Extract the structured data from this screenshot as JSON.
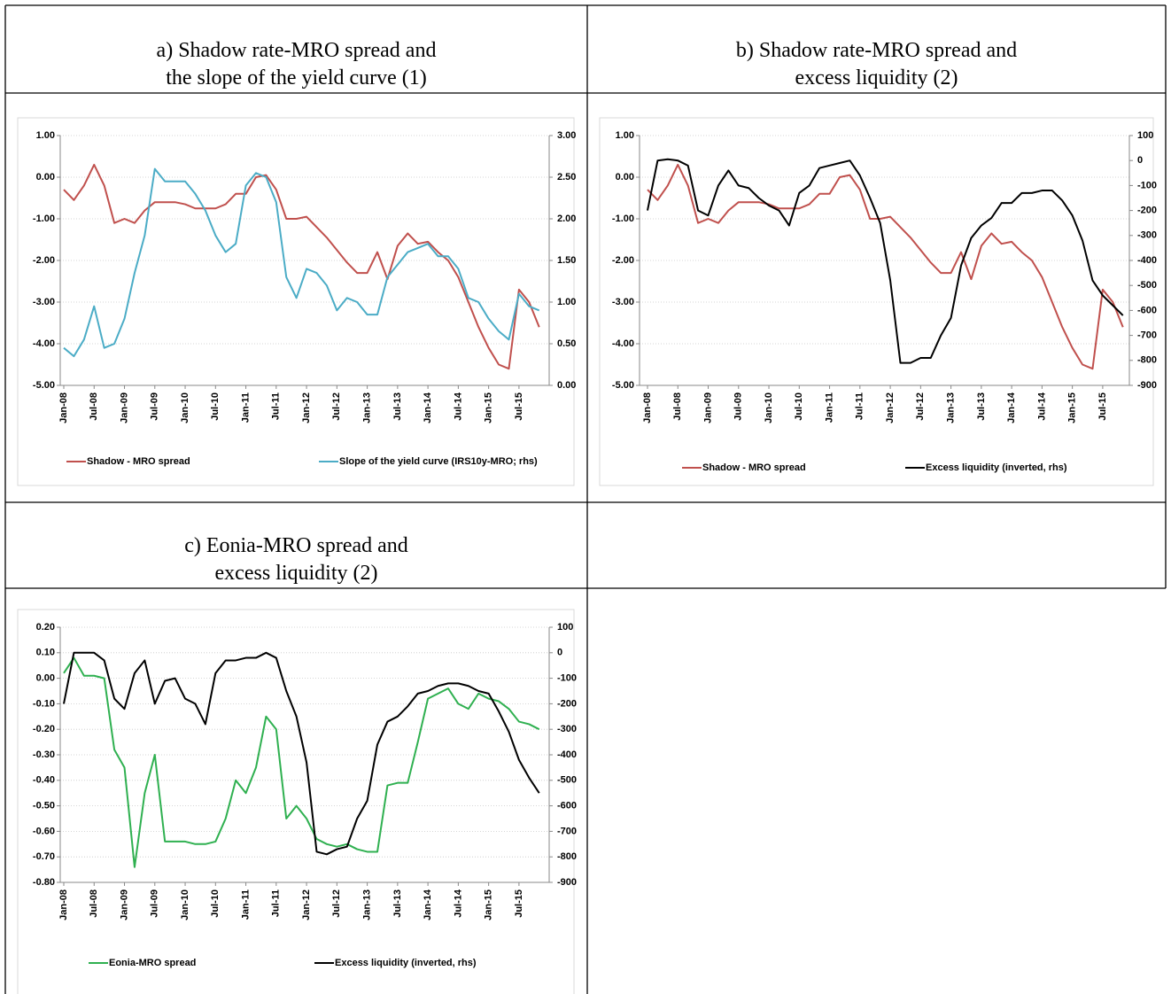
{
  "chart_data": [
    {
      "type": "line",
      "title": "a) Shadow rate-MRO spread and\nthe slope of the yield curve (1)",
      "categories": [
        "Jan-08",
        null,
        null,
        "Jul-08",
        null,
        null,
        "Jan-09",
        null,
        null,
        "Jul-09",
        null,
        null,
        "Jan-10",
        null,
        null,
        "Jul-10",
        null,
        null,
        "Jan-11",
        null,
        null,
        "Jul-11",
        null,
        null,
        "Jan-12",
        null,
        null,
        "Jul-12",
        null,
        null,
        "Jan-13",
        null,
        null,
        "Jul-13",
        null,
        null,
        "Jan-14",
        null,
        null,
        "Jul-14",
        null,
        null,
        "Jan-15",
        null,
        null,
        "Jul-15",
        null,
        null
      ],
      "series": [
        {
          "name": "Shadow - MRO spread",
          "color": "#c0504d",
          "values": [
            -0.3,
            -0.55,
            -0.2,
            0.3,
            -0.2,
            -1.1,
            -1.0,
            -1.1,
            -0.8,
            -0.6,
            -0.6,
            -0.6,
            -0.65,
            -0.75,
            -0.75,
            -0.75,
            -0.65,
            -0.4,
            -0.4,
            0.0,
            0.05,
            -0.3,
            -1.0,
            -1.0,
            -0.95,
            -1.2,
            -1.45,
            -1.75,
            -2.05,
            -2.3,
            -2.3,
            -1.8,
            -2.45,
            -1.65,
            -1.35,
            -1.6,
            -1.55,
            -1.8,
            -2.0,
            -2.4,
            -3.0,
            -3.6,
            -4.1,
            -4.5,
            -4.6,
            -2.7,
            -3.0,
            -3.6
          ]
        },
        {
          "name": "Slope of the yield curve (IRS10y-MRO; rhs)",
          "color": "#4bacc6",
          "axis": "y2",
          "values": [
            0.45,
            0.35,
            0.55,
            0.95,
            0.45,
            0.5,
            0.8,
            1.35,
            1.8,
            2.6,
            2.45,
            2.45,
            2.45,
            2.3,
            2.1,
            1.8,
            1.6,
            1.7,
            2.4,
            2.55,
            2.5,
            2.2,
            1.3,
            1.05,
            1.4,
            1.35,
            1.2,
            0.9,
            1.05,
            1.0,
            0.85,
            0.85,
            1.3,
            1.45,
            1.6,
            1.65,
            1.7,
            1.55,
            1.55,
            1.4,
            1.05,
            1.0,
            0.8,
            0.65,
            0.55,
            1.1,
            0.95,
            0.9
          ]
        }
      ],
      "ylim": [
        -5,
        1
      ],
      "yticks": [
        {
          "value": -5,
          "label": "-5.00"
        },
        {
          "value": -4,
          "label": "-4.00"
        },
        {
          "value": -3,
          "label": "-3.00"
        },
        {
          "value": -2,
          "label": "-2.00"
        },
        {
          "value": -1,
          "label": "-1.00"
        },
        {
          "value": 0,
          "label": "0.00"
        },
        {
          "value": 1,
          "label": "1.00"
        }
      ],
      "y2lim": [
        0,
        3
      ],
      "y2ticks": [
        {
          "value": 0,
          "label": "0.00"
        },
        {
          "value": 0.5,
          "label": "0.50"
        },
        {
          "value": 1,
          "label": "1.00"
        },
        {
          "value": 1.5,
          "label": "1.50"
        },
        {
          "value": 2,
          "label": "2.00"
        },
        {
          "value": 2.5,
          "label": "2.50"
        },
        {
          "value": 3,
          "label": "3.00"
        }
      ],
      "grid": true,
      "legend": "bottom"
    },
    {
      "type": "line",
      "title": "b) Shadow rate-MRO spread and\nexcess liquidity (2)",
      "categories": [
        "Jan-08",
        null,
        null,
        "Jul-08",
        null,
        null,
        "Jan-09",
        null,
        null,
        "Jul-09",
        null,
        null,
        "Jan-10",
        null,
        null,
        "Jul-10",
        null,
        null,
        "Jan-11",
        null,
        null,
        "Jul-11",
        null,
        null,
        "Jan-12",
        null,
        null,
        "Jul-12",
        null,
        null,
        "Jan-13",
        null,
        null,
        "Jul-13",
        null,
        null,
        "Jan-14",
        null,
        null,
        "Jul-14",
        null,
        null,
        "Jan-15",
        null,
        null,
        "Jul-15",
        null,
        null
      ],
      "series": [
        {
          "name": "Shadow - MRO spread",
          "color": "#c0504d",
          "values": [
            -0.3,
            -0.55,
            -0.2,
            0.3,
            -0.2,
            -1.1,
            -1.0,
            -1.1,
            -0.8,
            -0.6,
            -0.6,
            -0.6,
            -0.65,
            -0.75,
            -0.75,
            -0.75,
            -0.65,
            -0.4,
            -0.4,
            0.0,
            0.05,
            -0.3,
            -1.0,
            -1.0,
            -0.95,
            -1.2,
            -1.45,
            -1.75,
            -2.05,
            -2.3,
            -2.3,
            -1.8,
            -2.45,
            -1.65,
            -1.35,
            -1.6,
            -1.55,
            -1.8,
            -2.0,
            -2.4,
            -3.0,
            -3.6,
            -4.1,
            -4.5,
            -4.6,
            -2.7,
            -3.0,
            -3.6
          ]
        },
        {
          "name": "Excess liquidity (inverted, rhs)",
          "color": "#000000",
          "axis": "y2",
          "values": [
            -200,
            0,
            5,
            0,
            -20,
            -200,
            -220,
            -100,
            -40,
            -100,
            -110,
            -150,
            -180,
            -200,
            -260,
            -130,
            -100,
            -30,
            -20,
            -10,
            0,
            -60,
            -150,
            -250,
            -480,
            -810,
            -810,
            -790,
            -790,
            -700,
            -630,
            -420,
            -310,
            -260,
            -230,
            -170,
            -170,
            -130,
            -130,
            -120,
            -120,
            -160,
            -220,
            -320,
            -480,
            -540,
            -580,
            -620
          ]
        }
      ],
      "ylim": [
        -5,
        1
      ],
      "yticks": [
        {
          "value": -5,
          "label": "-5.00"
        },
        {
          "value": -4,
          "label": "-4.00"
        },
        {
          "value": -3,
          "label": "-3.00"
        },
        {
          "value": -2,
          "label": "-2.00"
        },
        {
          "value": -1,
          "label": "-1.00"
        },
        {
          "value": 0,
          "label": "0.00"
        },
        {
          "value": 1,
          "label": "1.00"
        }
      ],
      "y2lim": [
        -900,
        100
      ],
      "y2ticks": [
        -900,
        -800,
        -700,
        -600,
        -500,
        -400,
        -300,
        -200,
        -100,
        0,
        100
      ],
      "grid": true,
      "legend": "bottom"
    },
    {
      "type": "line",
      "title": "c) Eonia-MRO spread and\nexcess liquidity (2)",
      "categories": [
        "Jan-08",
        null,
        null,
        "Jul-08",
        null,
        null,
        "Jan-09",
        null,
        null,
        "Jul-09",
        null,
        null,
        "Jan-10",
        null,
        null,
        "Jul-10",
        null,
        null,
        "Jan-11",
        null,
        null,
        "Jul-11",
        null,
        null,
        "Jan-12",
        null,
        null,
        "Jul-12",
        null,
        null,
        "Jan-13",
        null,
        null,
        "Jul-13",
        null,
        null,
        "Jan-14",
        null,
        null,
        "Jul-14",
        null,
        null,
        "Jan-15",
        null,
        null,
        "Jul-15",
        null,
        null
      ],
      "series": [
        {
          "name": "Eonia-MRO spread",
          "color": "#2fb050",
          "values": [
            0.02,
            0.08,
            0.01,
            0.01,
            0.0,
            -0.28,
            -0.35,
            -0.74,
            -0.45,
            -0.3,
            -0.64,
            -0.64,
            -0.64,
            -0.65,
            -0.65,
            -0.64,
            -0.55,
            -0.4,
            -0.45,
            -0.35,
            -0.15,
            -0.2,
            -0.55,
            -0.5,
            -0.55,
            -0.63,
            -0.65,
            -0.66,
            -0.65,
            -0.67,
            -0.68,
            -0.68,
            -0.42,
            -0.41,
            -0.41,
            -0.25,
            -0.08,
            -0.06,
            -0.04,
            -0.1,
            -0.12,
            -0.06,
            -0.08,
            -0.09,
            -0.12,
            -0.17,
            -0.18,
            -0.2
          ]
        },
        {
          "name": "Excess liquidity (inverted, rhs)",
          "color": "#000000",
          "axis": "y2",
          "values": [
            -200,
            0,
            0,
            0,
            -30,
            -180,
            -220,
            -80,
            -30,
            -200,
            -110,
            -100,
            -180,
            -200,
            -280,
            -80,
            -30,
            -30,
            -20,
            -20,
            0,
            -20,
            -150,
            -250,
            -430,
            -780,
            -790,
            -770,
            -760,
            -650,
            -580,
            -360,
            -270,
            -250,
            -210,
            -160,
            -150,
            -130,
            -120,
            -120,
            -130,
            -150,
            -160,
            -230,
            -310,
            -420,
            -490,
            -550
          ]
        }
      ],
      "ylim": [
        -0.8,
        0.2
      ],
      "yticks": [
        {
          "value": -0.8,
          "label": "-0.80"
        },
        {
          "value": -0.7,
          "label": "-0.70"
        },
        {
          "value": -0.6,
          "label": "-0.60"
        },
        {
          "value": -0.5,
          "label": "-0.50"
        },
        {
          "value": -0.4,
          "label": "-0.40"
        },
        {
          "value": -0.3,
          "label": "-0.30"
        },
        {
          "value": -0.2,
          "label": "-0.20"
        },
        {
          "value": -0.1,
          "label": "-0.10"
        },
        {
          "value": 0,
          "label": "0.00"
        },
        {
          "value": 0.1,
          "label": "0.10"
        },
        {
          "value": 0.2,
          "label": "0.20"
        }
      ],
      "y2lim": [
        -900,
        100
      ],
      "y2ticks": [
        -900,
        -800,
        -700,
        -600,
        -500,
        -400,
        -300,
        -200,
        -100,
        0,
        100
      ],
      "grid": true,
      "legend": "bottom"
    }
  ]
}
